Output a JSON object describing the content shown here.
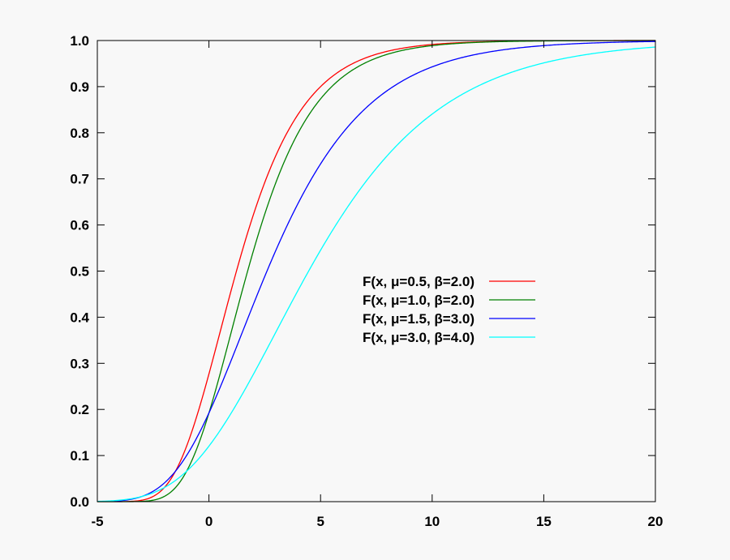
{
  "chart_data": {
    "type": "line",
    "title": "",
    "xlabel": "",
    "ylabel": "",
    "xlim": [
      -5,
      20
    ],
    "ylim": [
      0,
      1
    ],
    "grid": false,
    "legend_placement": "center-right",
    "x_ticks": [
      "-5",
      "0",
      "5",
      "10",
      "15",
      "20"
    ],
    "y_ticks": [
      "0.0",
      "0.1",
      "0.2",
      "0.3",
      "0.4",
      "0.5",
      "0.6",
      "0.7",
      "0.8",
      "0.9",
      "1.0"
    ],
    "x": [
      -5,
      -2.5,
      0,
      2.5,
      5,
      7.5,
      10,
      12.5,
      15,
      17.5,
      20
    ],
    "series": [
      {
        "name": "F(x, μ=0.5, β=2.0)",
        "mu": 0.5,
        "beta": 2.0,
        "color": "#ff0000",
        "values": [
          0.0,
          0.011,
          0.277,
          0.692,
          0.9,
          0.97,
          0.991,
          0.998,
          0.999,
          1.0,
          1.0
        ]
      },
      {
        "name": "F(x, μ=1.0, β=2.0)",
        "mu": 1.0,
        "beta": 2.0,
        "color": "#008000",
        "values": [
          0.0,
          0.003,
          0.192,
          0.624,
          0.873,
          0.962,
          0.989,
          0.997,
          0.999,
          1.0,
          1.0
        ]
      },
      {
        "name": "F(x, μ=1.5, β=3.0)",
        "mu": 1.5,
        "beta": 3.0,
        "color": "#0000ff",
        "values": [
          0.0,
          0.023,
          0.192,
          0.488,
          0.732,
          0.873,
          0.943,
          0.975,
          0.989,
          0.995,
          0.998
        ]
      },
      {
        "name": "F(x, μ=3.0, β=4.0)",
        "mu": 3.0,
        "beta": 4.0,
        "color": "#00ffff",
        "values": [
          0.001,
          0.019,
          0.12,
          0.322,
          0.545,
          0.723,
          0.84,
          0.911,
          0.951,
          0.974,
          0.986
        ]
      }
    ]
  }
}
